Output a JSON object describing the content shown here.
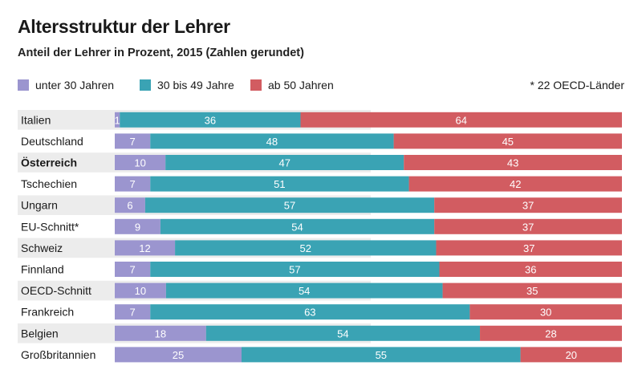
{
  "header": {
    "title": "Altersstruktur der Lehrer",
    "subtitle": "Anteil der Lehrer in Prozent, 2015 (Zahlen gerundet)",
    "footnote": "* 22 OECD-Länder"
  },
  "colors": {
    "under30": "#9b95cf",
    "mid": "#3aa3b4",
    "over50": "#d25c61",
    "stripe": "#ececec"
  },
  "chart_data": {
    "type": "bar",
    "orientation": "horizontal",
    "stacked": true,
    "title": "Altersstruktur der Lehrer",
    "subtitle": "Anteil der Lehrer in Prozent, 2015 (Zahlen gerundet)",
    "legend_position": "top",
    "categories": [
      "Italien",
      "Deutschland",
      "Österreich",
      "Tschechien",
      "Ungarn",
      "EU-Schnitt*",
      "Schweiz",
      "Finnland",
      "OECD-Schnitt",
      "Frankreich",
      "Belgien",
      "Großbritannien"
    ],
    "highlight": "Österreich",
    "series": [
      {
        "name": "unter 30 Jahren",
        "values": [
          1,
          7,
          10,
          7,
          6,
          9,
          12,
          7,
          10,
          7,
          18,
          25
        ]
      },
      {
        "name": "30 bis 49 Jahre",
        "values": [
          36,
          48,
          47,
          51,
          57,
          54,
          52,
          57,
          54,
          63,
          54,
          55
        ]
      },
      {
        "name": "ab 50 Jahren",
        "values": [
          64,
          45,
          43,
          42,
          37,
          37,
          37,
          36,
          35,
          30,
          28,
          20
        ]
      }
    ]
  }
}
